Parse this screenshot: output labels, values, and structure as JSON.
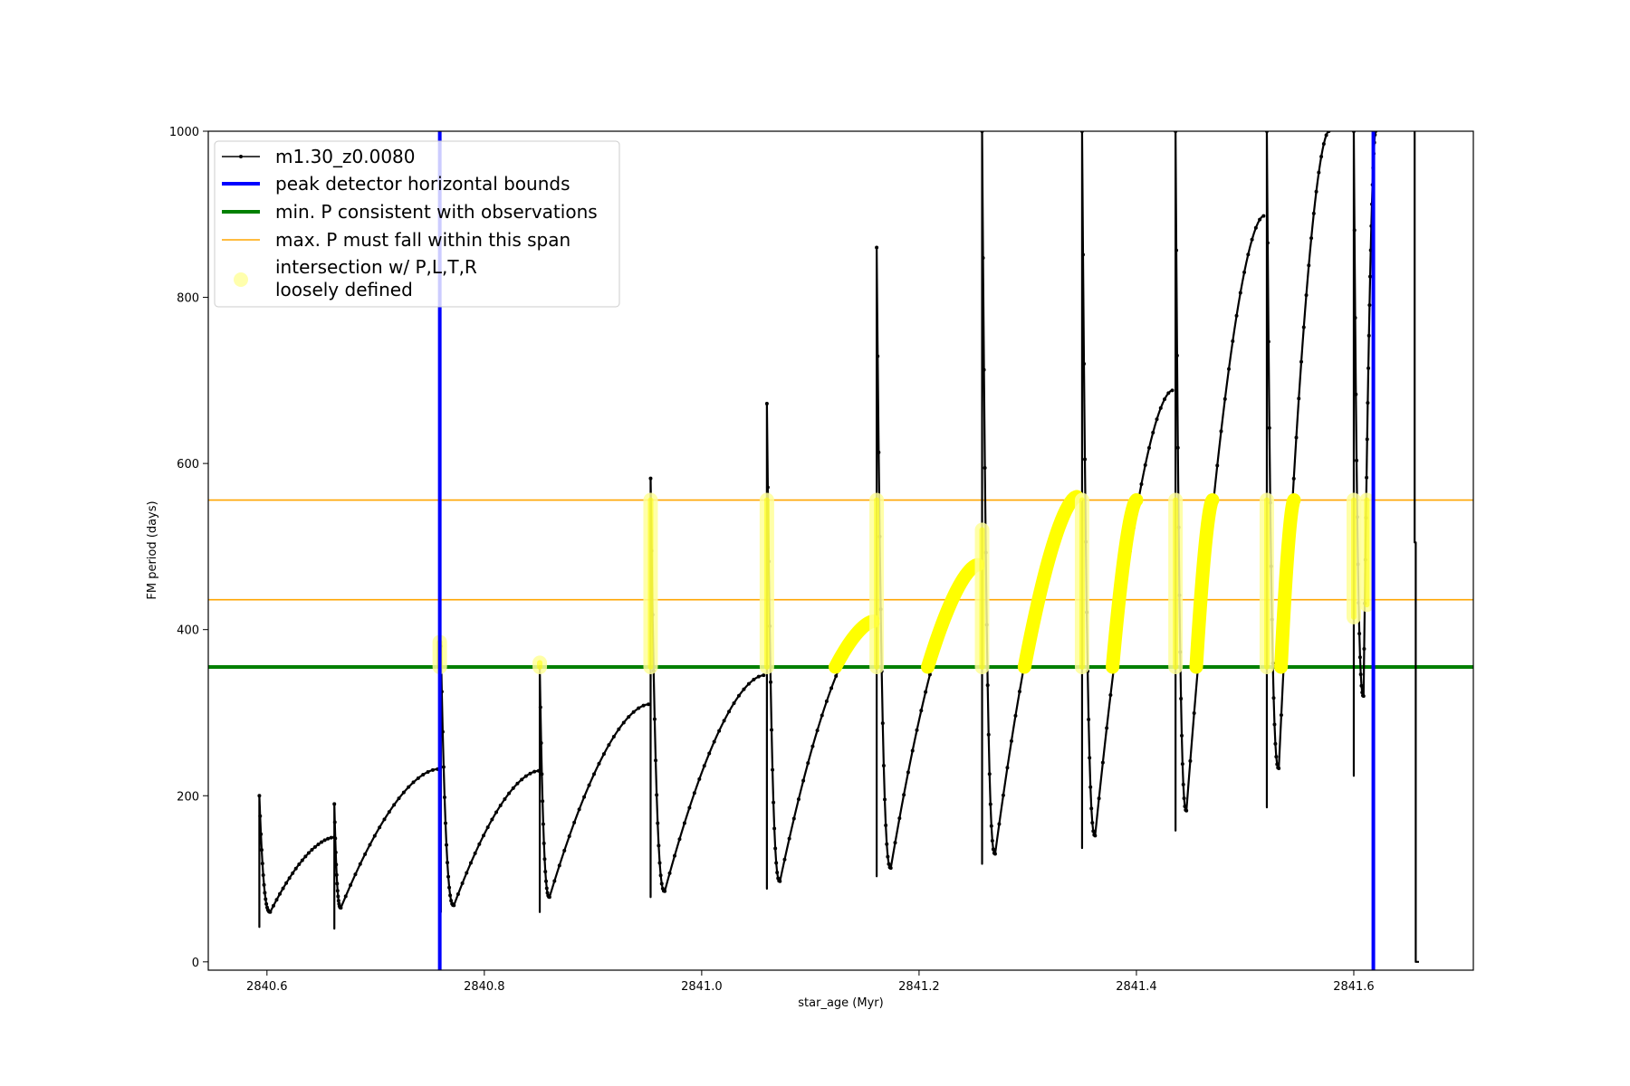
{
  "chart_data": {
    "type": "line",
    "xlabel": "star_age (Myr)",
    "ylabel": "FM period (days)",
    "xlim": [
      2840.546,
      2841.71
    ],
    "ylim": [
      -10,
      1000
    ],
    "x_ticks": [
      2840.6,
      2840.8,
      2841.0,
      2841.2,
      2841.4,
      2841.6
    ],
    "x_tick_labels": [
      "2840.6",
      "2840.8",
      "2841.0",
      "2841.2",
      "2841.4",
      "2841.6"
    ],
    "y_ticks": [
      0,
      200,
      400,
      600,
      800,
      1000
    ],
    "y_tick_labels": [
      "0",
      "200",
      "400",
      "600",
      "800",
      "1000"
    ],
    "grid": false,
    "legend_position": "top-left",
    "legend": [
      {
        "label": "m1.30_z0.0080",
        "style": "line-marker",
        "color": "#000000"
      },
      {
        "label": "peak detector horizontal bounds",
        "style": "thick-line",
        "color": "#0000ff"
      },
      {
        "label": "min. P consistent with observations",
        "style": "thick-line",
        "color": "#008000"
      },
      {
        "label": "max. P must fall within this span",
        "style": "thin-line",
        "color": "#ffa500"
      },
      {
        "label": "intersection w/ P,L,T,R",
        "label_line2": "loosely defined",
        "style": "dot",
        "color": "#ffff99"
      }
    ],
    "vertical_lines": {
      "name": "peak detector horizontal bounds",
      "x": [
        2840.759,
        2841.618
      ],
      "color": "#0000ff"
    },
    "min_period_line": {
      "name": "min. P consistent with observations",
      "y": 355,
      "color": "#008000"
    },
    "max_period_span": {
      "name": "max. P must fall within this span",
      "y": [
        436,
        556
      ],
      "color": "#ffa500"
    },
    "highlight_color": "#ffff00",
    "series_color": "#000000",
    "cycles": [
      {
        "start": 2840.593,
        "peak_start": 200,
        "min": 60,
        "min_x": 2840.603,
        "end": 2840.662,
        "peak_end": 150,
        "spike_top": 200,
        "spike_bottom": 42
      },
      {
        "start": 2840.662,
        "peak_start": 190,
        "min": 65,
        "min_x": 2840.668,
        "end": 2840.757,
        "peak_end": 232,
        "spike_top": 192,
        "spike_bottom": 40
      },
      {
        "start": 2840.76,
        "peak_start": 380,
        "min": 68,
        "min_x": 2840.772,
        "end": 2840.85,
        "peak_end": 230,
        "spike_top": 380,
        "spike_bottom": 60
      },
      {
        "start": 2840.851,
        "peak_start": 355,
        "min": 78,
        "min_x": 2840.86,
        "end": 2840.951,
        "peak_end": 310,
        "spike_top": 355,
        "spike_bottom": 60
      },
      {
        "start": 2840.953,
        "peak_start": 582,
        "min": 85,
        "min_x": 2840.966,
        "end": 2841.057,
        "peak_end": 345,
        "spike_top": 582,
        "spike_bottom": 78
      },
      {
        "start": 2841.06,
        "peak_start": 672,
        "min": 97,
        "min_x": 2841.072,
        "end": 2841.158,
        "peak_end": 410,
        "spike_top": 672,
        "spike_bottom": 88
      },
      {
        "start": 2841.161,
        "peak_start": 860,
        "min": 113,
        "min_x": 2841.174,
        "end": 2841.254,
        "peak_end": 478,
        "spike_top": 860,
        "spike_bottom": 103
      },
      {
        "start": 2841.258,
        "peak_start": 1000,
        "min": 130,
        "min_x": 2841.27,
        "end": 2841.345,
        "peak_end": 560,
        "spike_top": 1000,
        "spike_bottom": 118
      },
      {
        "start": 2841.35,
        "peak_start": 1000,
        "min": 152,
        "min_x": 2841.362,
        "end": 2841.433,
        "peak_end": 688,
        "spike_top": 1000,
        "spike_bottom": 137
      },
      {
        "start": 2841.436,
        "peak_start": 1000,
        "min": 182,
        "min_x": 2841.446,
        "end": 2841.517,
        "peak_end": 898,
        "spike_top": 1000,
        "spike_bottom": 158
      },
      {
        "start": 2841.52,
        "peak_start": 1000,
        "min": 233,
        "min_x": 2841.531,
        "end": 2841.577,
        "peak_end": 1000,
        "spike_top": 1000,
        "spike_bottom": 186
      },
      {
        "start": 2841.6,
        "peak_start": 1000,
        "min": 320,
        "min_x": 2841.609,
        "end": 2841.62,
        "peak_end": 1000,
        "spike_top": 1000,
        "spike_bottom": 224
      }
    ],
    "final_drop": {
      "x": 2841.656,
      "y_top": 1000,
      "y_step": 505,
      "y_end": 0,
      "x_end": 2841.66
    },
    "highlights": [
      {
        "type": "band",
        "x": 2840.759,
        "y": [
          355,
          385
        ]
      },
      {
        "type": "band",
        "x": 2840.851,
        "y": [
          355,
          360
        ]
      },
      {
        "type": "band",
        "x": 2840.953,
        "y": [
          355,
          556
        ]
      },
      {
        "type": "band",
        "x": 2841.06,
        "y": [
          355,
          556
        ]
      },
      {
        "type": "curve",
        "x": [
          2841.123,
          2841.158
        ],
        "y": [
          355,
          410
        ]
      },
      {
        "type": "band",
        "x": 2841.161,
        "y": [
          355,
          556
        ]
      },
      {
        "type": "curve",
        "x": [
          2841.208,
          2841.254
        ],
        "y": [
          355,
          478
        ]
      },
      {
        "type": "band",
        "x": 2841.258,
        "y": [
          355,
          520
        ]
      },
      {
        "type": "curve",
        "x": [
          2841.297,
          2841.345
        ],
        "y": [
          355,
          560
        ]
      },
      {
        "type": "band",
        "x": 2841.35,
        "y": [
          355,
          556
        ]
      },
      {
        "type": "curve",
        "x": [
          2841.378,
          2841.4
        ],
        "y": [
          355,
          556
        ]
      },
      {
        "type": "band",
        "x": 2841.436,
        "y": [
          355,
          556
        ]
      },
      {
        "type": "curve",
        "x": [
          2841.455,
          2841.47
        ],
        "y": [
          355,
          556
        ]
      },
      {
        "type": "band",
        "x": 2841.52,
        "y": [
          355,
          556
        ]
      },
      {
        "type": "curve",
        "x": [
          2841.533,
          2841.545
        ],
        "y": [
          355,
          556
        ]
      },
      {
        "type": "band",
        "x": 2841.6,
        "y": [
          415,
          556
        ]
      },
      {
        "type": "band",
        "x": 2841.612,
        "y": [
          430,
          556
        ]
      }
    ]
  }
}
